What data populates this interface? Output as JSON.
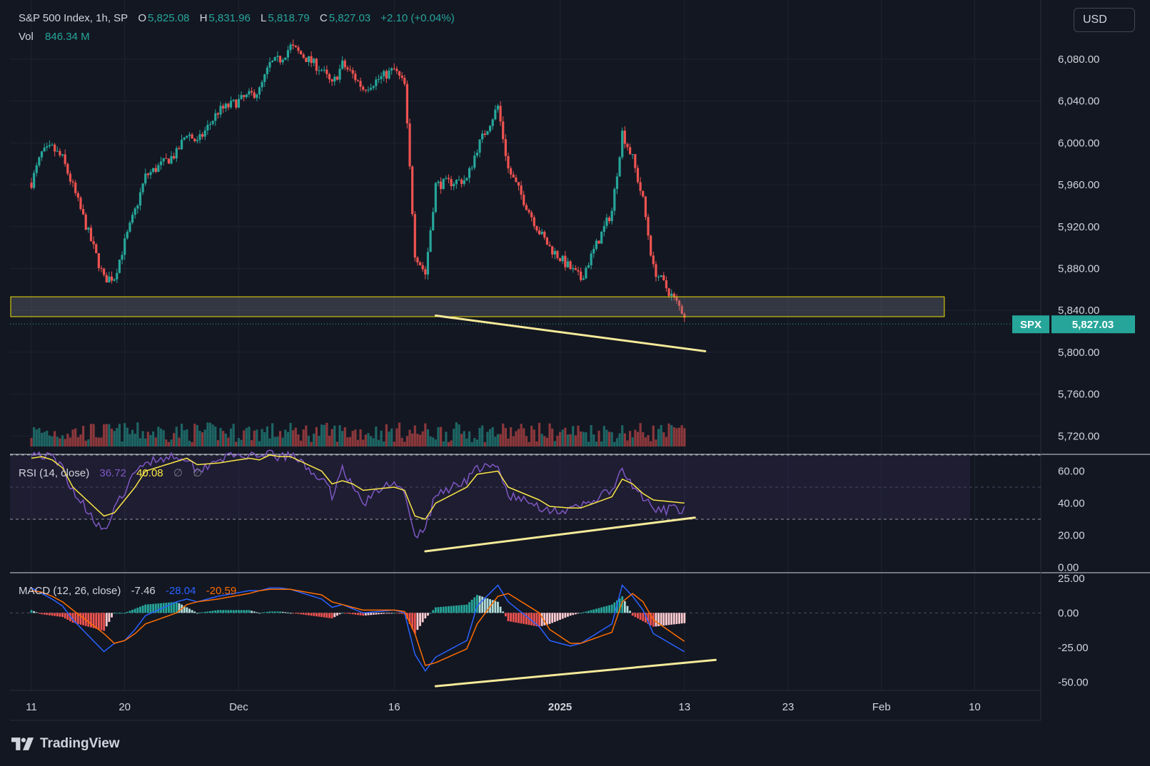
{
  "header": {
    "symbol": "S&P 500 Index, 1h, SP",
    "open_label": "O",
    "open": "5,825.08",
    "high_label": "H",
    "high": "5,831.96",
    "low_label": "L",
    "low": "5,818.79",
    "close_label": "C",
    "close": "5,827.03",
    "change": "+2.10 (+0.04%)",
    "vol_label": "Vol",
    "vol": "846.34 M"
  },
  "currency_button": "USD",
  "price_badge": {
    "symbol": "SPX",
    "price": "5,827.03"
  },
  "rsi_legend": {
    "title": "RSI (14, close)",
    "value": "36.72",
    "ma": "40.08",
    "extra1": "∅",
    "extra2": "∅"
  },
  "macd_legend": {
    "title": "MACD (12, 26, close)",
    "hist": "-7.46",
    "macd": "-28.04",
    "signal": "-20.59"
  },
  "brand": "TradingView",
  "icons": {
    "logo": "tradingview-logo-icon"
  },
  "colors": {
    "up": "#26a69a",
    "down": "#ef5350",
    "rsi": "#7e57c2",
    "rsi_ma": "#f9e547",
    "macd": "#2962ff",
    "signal": "#ff6d00",
    "annotation": "#f5ea9a",
    "zone": "#f0e000"
  },
  "chart_data": [
    {
      "type": "candlestick",
      "title": "S&P 500 Index, 1h, SP",
      "y_ticks": [
        "6,080.00",
        "6,040.00",
        "6,000.00",
        "5,960.00",
        "5,920.00",
        "5,880.00",
        "5,840.00",
        "5,800.00",
        "5,760.00",
        "5,720.00"
      ],
      "y_tick_values": [
        6080,
        6040,
        6000,
        5960,
        5920,
        5880,
        5840,
        5800,
        5760,
        5720
      ],
      "ylim": [
        5710,
        6097
      ],
      "x_ticks": [
        "11",
        "20",
        "Dec",
        "16",
        "2025",
        "13",
        "23",
        "Feb",
        "10"
      ],
      "x_tick_dates": [
        "2024-11-11",
        "2024-11-20",
        "2024-12-01",
        "2024-12-16",
        "2025-01-01",
        "2025-01-13",
        "2025-01-23",
        "2025-02-01",
        "2025-02-10"
      ],
      "xlim": [
        "2024-11-11",
        "2025-02-13"
      ],
      "price_path": [
        [
          "2024-11-11",
          5962
        ],
        [
          "2024-11-12",
          5990
        ],
        [
          "2024-11-13",
          5995
        ],
        [
          "2024-11-14",
          5985
        ],
        [
          "2024-11-15",
          5958
        ],
        [
          "2024-11-18",
          5870
        ],
        [
          "2024-11-19",
          5872
        ],
        [
          "2024-11-20",
          5905
        ],
        [
          "2024-11-21",
          5935
        ],
        [
          "2024-11-22",
          5968
        ],
        [
          "2024-11-25",
          5990
        ],
        [
          "2024-11-26",
          6010
        ],
        [
          "2024-11-27",
          6000
        ],
        [
          "2024-11-29",
          6030
        ],
        [
          "2024-12-02",
          6045
        ],
        [
          "2024-12-03",
          6050
        ],
        [
          "2024-12-04",
          6075
        ],
        [
          "2024-12-05",
          6080
        ],
        [
          "2024-12-06",
          6092
        ],
        [
          "2024-12-09",
          6070
        ],
        [
          "2024-12-10",
          6055
        ],
        [
          "2024-12-11",
          6075
        ],
        [
          "2024-12-12",
          6065
        ],
        [
          "2024-12-13",
          6052
        ],
        [
          "2024-12-16",
          6070
        ],
        [
          "2024-12-17",
          6055
        ],
        [
          "2024-12-18",
          5895
        ],
        [
          "2024-12-19",
          5875
        ],
        [
          "2024-12-20",
          5960
        ],
        [
          "2024-12-23",
          5965
        ],
        [
          "2024-12-24",
          5995
        ],
        [
          "2024-12-26",
          6035
        ],
        [
          "2024-12-27",
          5975
        ],
        [
          "2024-12-30",
          5915
        ],
        [
          "2024-12-31",
          5900
        ],
        [
          "2025-01-02",
          5880
        ],
        [
          "2025-01-03",
          5870
        ],
        [
          "2025-01-06",
          5935
        ],
        [
          "2025-01-07",
          6010
        ],
        [
          "2025-01-08",
          5985
        ],
        [
          "2025-01-09",
          5945
        ],
        [
          "2025-01-10",
          5880
        ],
        [
          "2025-01-13",
          5836
        ]
      ],
      "volume_last": "846.34 M",
      "zone": {
        "low": 5834,
        "high": 5853,
        "start": "2024-11-11",
        "end": "2025-02-07"
      },
      "last_price": 5827.03,
      "annotations": [
        {
          "type": "trendline",
          "from": [
            "2024-12-20",
            5835
          ],
          "to": [
            "2025-01-15",
            5801
          ]
        }
      ]
    },
    {
      "type": "line",
      "title": "RSI (14, close)",
      "y_ticks": [
        "60.00",
        "40.00",
        "20.00",
        "0.00"
      ],
      "y_tick_values": [
        60,
        40,
        20,
        0
      ],
      "ylim": [
        -2,
        70
      ],
      "bands": [
        30,
        50,
        70
      ],
      "series": [
        {
          "name": "RSI",
          "values": [
            [
              "2024-11-11",
              72
            ],
            [
              "2024-11-12",
              70
            ],
            [
              "2024-11-13",
              68
            ],
            [
              "2024-11-14",
              62
            ],
            [
              "2024-11-15",
              48
            ],
            [
              "2024-11-18",
              22
            ],
            [
              "2024-11-19",
              35
            ],
            [
              "2024-11-20",
              48
            ],
            [
              "2024-11-21",
              58
            ],
            [
              "2024-11-22",
              66
            ],
            [
              "2024-11-25",
              70
            ],
            [
              "2024-11-26",
              68
            ],
            [
              "2024-11-27",
              60
            ],
            [
              "2024-11-29",
              68
            ],
            [
              "2024-12-02",
              70
            ],
            [
              "2024-12-03",
              66
            ],
            [
              "2024-12-04",
              72
            ],
            [
              "2024-12-05",
              68
            ],
            [
              "2024-12-06",
              70
            ],
            [
              "2024-12-09",
              55
            ],
            [
              "2024-12-10",
              45
            ],
            [
              "2024-12-11",
              62
            ],
            [
              "2024-12-12",
              50
            ],
            [
              "2024-12-13",
              40
            ],
            [
              "2024-12-16",
              55
            ],
            [
              "2024-12-17",
              45
            ],
            [
              "2024-12-18",
              18
            ],
            [
              "2024-12-19",
              25
            ],
            [
              "2024-12-20",
              45
            ],
            [
              "2024-12-23",
              55
            ],
            [
              "2024-12-24",
              62
            ],
            [
              "2024-12-26",
              62
            ],
            [
              "2024-12-27",
              45
            ],
            [
              "2024-12-30",
              38
            ],
            [
              "2024-12-31",
              36
            ],
            [
              "2025-01-02",
              35
            ],
            [
              "2025-01-03",
              38
            ],
            [
              "2025-01-06",
              48
            ],
            [
              "2025-01-07",
              60
            ],
            [
              "2025-01-08",
              50
            ],
            [
              "2025-01-09",
              44
            ],
            [
              "2025-01-10",
              35
            ],
            [
              "2025-01-13",
              36.72
            ]
          ]
        },
        {
          "name": "RSI-based MA",
          "values": [
            [
              "2024-11-11",
              68
            ],
            [
              "2024-11-12",
              69
            ],
            [
              "2024-11-13",
              67
            ],
            [
              "2024-11-14",
              62
            ],
            [
              "2024-11-15",
              50
            ],
            [
              "2024-11-18",
              32
            ],
            [
              "2024-11-19",
              34
            ],
            [
              "2024-11-20",
              42
            ],
            [
              "2024-11-21",
              50
            ],
            [
              "2024-11-22",
              60
            ],
            [
              "2024-11-25",
              66
            ],
            [
              "2024-11-26",
              68
            ],
            [
              "2024-11-27",
              64
            ],
            [
              "2024-11-29",
              65
            ],
            [
              "2024-12-02",
              68
            ],
            [
              "2024-12-03",
              67
            ],
            [
              "2024-12-04",
              70
            ],
            [
              "2024-12-05",
              69
            ],
            [
              "2024-12-06",
              69
            ],
            [
              "2024-12-09",
              60
            ],
            [
              "2024-12-10",
              52
            ],
            [
              "2024-12-11",
              54
            ],
            [
              "2024-12-12",
              52
            ],
            [
              "2024-12-13",
              48
            ],
            [
              "2024-12-16",
              50
            ],
            [
              "2024-12-17",
              48
            ],
            [
              "2024-12-18",
              32
            ],
            [
              "2024-12-19",
              30
            ],
            [
              "2024-12-20",
              40
            ],
            [
              "2024-12-23",
              50
            ],
            [
              "2024-12-24",
              58
            ],
            [
              "2024-12-26",
              60
            ],
            [
              "2024-12-27",
              50
            ],
            [
              "2024-12-30",
              42
            ],
            [
              "2024-12-31",
              38
            ],
            [
              "2025-01-02",
              37
            ],
            [
              "2025-01-03",
              37
            ],
            [
              "2025-01-06",
              44
            ],
            [
              "2025-01-07",
              55
            ],
            [
              "2025-01-08",
              52
            ],
            [
              "2025-01-09",
              46
            ],
            [
              "2025-01-10",
              42
            ],
            [
              "2025-01-13",
              40.08
            ]
          ]
        }
      ],
      "annotations": [
        {
          "type": "trendline",
          "from": [
            "2024-12-19",
            10
          ],
          "to": [
            "2025-01-14",
            31
          ]
        }
      ]
    },
    {
      "type": "histogram+line",
      "title": "MACD (12, 26, close)",
      "y_ticks": [
        "25.00",
        "0.00",
        "-25.00",
        "-50.00"
      ],
      "y_tick_values": [
        25,
        0,
        -25,
        -50
      ],
      "ylim": [
        -55,
        28
      ],
      "series": [
        {
          "name": "MACD",
          "values": [
            [
              "2024-11-11",
              18
            ],
            [
              "2024-11-12",
              14
            ],
            [
              "2024-11-13",
              10
            ],
            [
              "2024-11-14",
              5
            ],
            [
              "2024-11-15",
              -5
            ],
            [
              "2024-11-18",
              -28
            ],
            [
              "2024-11-19",
              -22
            ],
            [
              "2024-11-20",
              -20
            ],
            [
              "2024-11-21",
              -12
            ],
            [
              "2024-11-22",
              -2
            ],
            [
              "2024-11-25",
              8
            ],
            [
              "2024-11-26",
              10
            ],
            [
              "2024-11-27",
              8
            ],
            [
              "2024-11-29",
              12
            ],
            [
              "2024-12-02",
              16
            ],
            [
              "2024-12-03",
              16
            ],
            [
              "2024-12-04",
              18
            ],
            [
              "2024-12-05",
              18
            ],
            [
              "2024-12-06",
              17
            ],
            [
              "2024-12-09",
              10
            ],
            [
              "2024-12-10",
              4
            ],
            [
              "2024-12-11",
              6
            ],
            [
              "2024-12-12",
              3
            ],
            [
              "2024-12-13",
              0
            ],
            [
              "2024-12-16",
              2
            ],
            [
              "2024-12-17",
              0
            ],
            [
              "2024-12-18",
              -30
            ],
            [
              "2024-12-19",
              -42
            ],
            [
              "2024-12-20",
              -32
            ],
            [
              "2024-12-23",
              -20
            ],
            [
              "2024-12-24",
              5
            ],
            [
              "2024-12-26",
              20
            ],
            [
              "2024-12-27",
              8
            ],
            [
              "2024-12-30",
              -10
            ],
            [
              "2024-12-31",
              -20
            ],
            [
              "2025-01-02",
              -24
            ],
            [
              "2025-01-03",
              -22
            ],
            [
              "2025-01-06",
              -8
            ],
            [
              "2025-01-07",
              20
            ],
            [
              "2025-01-08",
              12
            ],
            [
              "2025-01-09",
              2
            ],
            [
              "2025-01-10",
              -15
            ],
            [
              "2025-01-13",
              -28.04
            ]
          ]
        },
        {
          "name": "Signal",
          "values": [
            [
              "2024-11-11",
              16
            ],
            [
              "2024-11-12",
              15
            ],
            [
              "2024-11-13",
              12
            ],
            [
              "2024-11-14",
              8
            ],
            [
              "2024-11-15",
              2
            ],
            [
              "2024-11-18",
              -15
            ],
            [
              "2024-11-19",
              -22
            ],
            [
              "2024-11-20",
              -20
            ],
            [
              "2024-11-21",
              -15
            ],
            [
              "2024-11-22",
              -8
            ],
            [
              "2024-11-25",
              0
            ],
            [
              "2024-11-26",
              6
            ],
            [
              "2024-11-27",
              8
            ],
            [
              "2024-11-29",
              10
            ],
            [
              "2024-12-02",
              14
            ],
            [
              "2024-12-03",
              16
            ],
            [
              "2024-12-04",
              17
            ],
            [
              "2024-12-05",
              17
            ],
            [
              "2024-12-06",
              17
            ],
            [
              "2024-12-09",
              13
            ],
            [
              "2024-12-10",
              8
            ],
            [
              "2024-12-11",
              6
            ],
            [
              "2024-12-12",
              4
            ],
            [
              "2024-12-13",
              2
            ],
            [
              "2024-12-16",
              2
            ],
            [
              "2024-12-17",
              1
            ],
            [
              "2024-12-18",
              -15
            ],
            [
              "2024-12-19",
              -38
            ],
            [
              "2024-12-20",
              -36
            ],
            [
              "2024-12-23",
              -26
            ],
            [
              "2024-12-24",
              -8
            ],
            [
              "2024-12-26",
              12
            ],
            [
              "2024-12-27",
              14
            ],
            [
              "2024-12-30",
              0
            ],
            [
              "2024-12-31",
              -12
            ],
            [
              "2025-01-02",
              -22
            ],
            [
              "2025-01-03",
              -22
            ],
            [
              "2025-01-06",
              -14
            ],
            [
              "2025-01-07",
              8
            ],
            [
              "2025-01-08",
              14
            ],
            [
              "2025-01-09",
              8
            ],
            [
              "2025-01-10",
              -5
            ],
            [
              "2025-01-13",
              -20.59
            ]
          ]
        }
      ],
      "annotations": [
        {
          "type": "trendline",
          "from": [
            "2024-12-20",
            -53
          ],
          "to": [
            "2025-01-16",
            -34
          ]
        }
      ]
    }
  ]
}
